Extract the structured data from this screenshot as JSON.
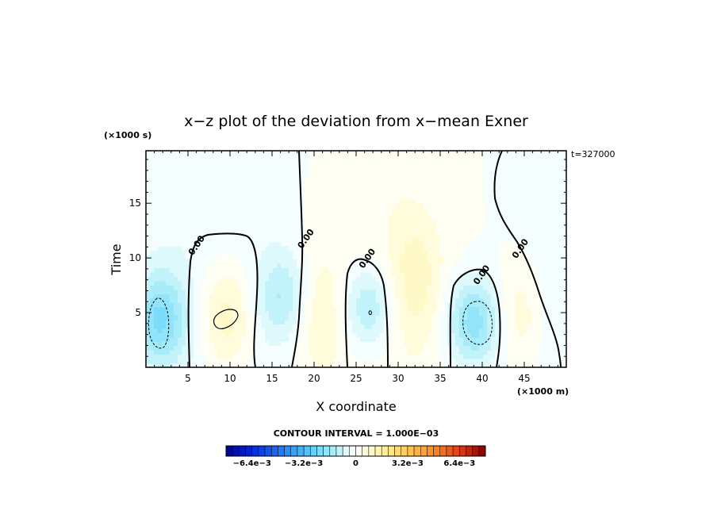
{
  "chart_data": {
    "type": "heatmap",
    "title": "x−z plot of the deviation from x−mean Exner",
    "xlabel": "X coordinate",
    "ylabel": "Time",
    "x_unit": "(×1000 m)",
    "y_unit": "(×1000 s)",
    "time_stamp": "t=327000",
    "xlim": [
      0,
      50
    ],
    "ylim": [
      0,
      19.8
    ],
    "x_ticks": [
      5,
      10,
      15,
      20,
      25,
      30,
      35,
      40,
      45
    ],
    "y_ticks": [
      5,
      10,
      15
    ],
    "contour_interval_text": "CONTOUR INTERVAL = 1.000E−03",
    "contour_labels": [
      {
        "text": "0.00",
        "x": 6.3,
        "y": 11.0
      },
      {
        "text": "0.00",
        "x": 19.3,
        "y": 11.6
      },
      {
        "text": "0.00",
        "x": 26.6,
        "y": 9.8
      },
      {
        "text": "0.00",
        "x": 40.2,
        "y": 8.3
      },
      {
        "text": "0.00",
        "x": 44.8,
        "y": 10.7
      }
    ],
    "colorbar": {
      "min": -0.008,
      "max": 0.008,
      "tick_labels": [
        "−6.4e−3",
        "−3.2e−3",
        "0",
        "3.2e−3",
        "6.4e−3"
      ],
      "tick_values": [
        -0.0064,
        -0.0032,
        0,
        0.0032,
        0.0064
      ]
    },
    "field_features": [
      {
        "sign": "negative",
        "x": 1.6,
        "y": 4.5,
        "amplitude": -0.0019
      },
      {
        "sign": "positive",
        "x": 9.5,
        "y": 4.5,
        "amplitude": 0.0013
      },
      {
        "sign": "negative",
        "x": 16.5,
        "y": 6.5,
        "amplitude": -0.0012
      },
      {
        "sign": "positive",
        "x": 20.5,
        "y": 5.0,
        "amplitude": 0.0008
      },
      {
        "sign": "negative",
        "x": 26.5,
        "y": 5.5,
        "amplitude": -0.0014
      },
      {
        "sign": "positive",
        "x": 32.0,
        "y": 8.0,
        "amplitude": 0.0009
      },
      {
        "sign": "negative",
        "x": 39.0,
        "y": 4.2,
        "amplitude": -0.0019
      },
      {
        "sign": "positive",
        "x": 44.5,
        "y": 4.8,
        "amplitude": 0.0008
      }
    ]
  }
}
